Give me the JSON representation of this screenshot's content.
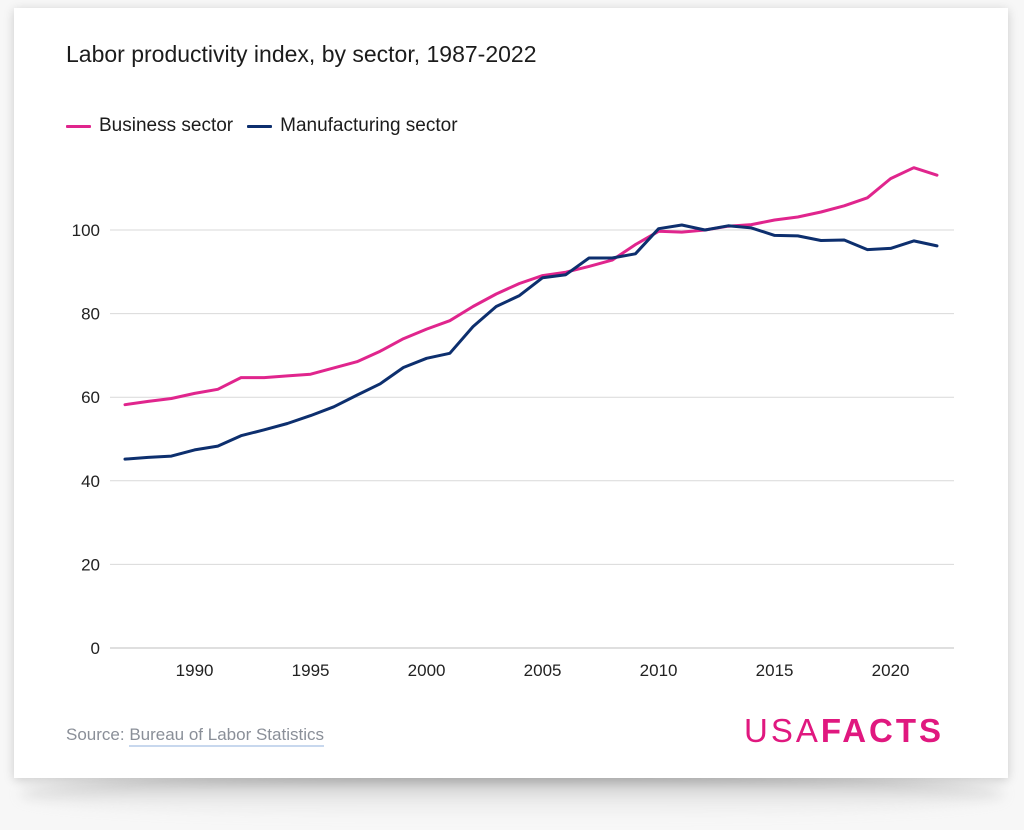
{
  "chart_data": {
    "type": "line",
    "title": "Labor productivity index, by sector, 1987-2022",
    "xlabel": "",
    "ylabel": "",
    "x": [
      1987,
      1988,
      1989,
      1990,
      1991,
      1992,
      1993,
      1994,
      1995,
      1996,
      1997,
      1998,
      1999,
      2000,
      2001,
      2002,
      2003,
      2004,
      2005,
      2006,
      2007,
      2008,
      2009,
      2010,
      2011,
      2012,
      2013,
      2014,
      2015,
      2016,
      2017,
      2018,
      2019,
      2020,
      2021,
      2022
    ],
    "xlim": [
      1987,
      2022
    ],
    "ylim": [
      0,
      115
    ],
    "yticks": [
      0,
      20,
      40,
      60,
      80,
      100
    ],
    "xticks": [
      1990,
      1995,
      2000,
      2005,
      2010,
      2015,
      2020
    ],
    "grid": true,
    "legend_position": "top-left",
    "series": [
      {
        "name": "Business sector",
        "color": "#e0258d",
        "values": [
          58.2,
          59.0,
          59.7,
          60.9,
          61.9,
          64.7,
          64.7,
          65.1,
          65.5,
          67.0,
          68.5,
          71.0,
          74.0,
          76.3,
          78.3,
          81.7,
          84.7,
          87.2,
          89.1,
          89.9,
          91.3,
          92.8,
          96.5,
          99.7,
          99.5,
          100.0,
          100.9,
          101.3,
          102.4,
          103.1,
          104.3,
          105.8,
          107.7,
          112.3,
          114.9,
          113.1
        ]
      },
      {
        "name": "Manufacturing sector",
        "color": "#0d2f6e",
        "values": [
          45.2,
          45.6,
          45.9,
          47.4,
          48.3,
          50.8,
          52.2,
          53.7,
          55.6,
          57.7,
          60.5,
          63.2,
          67.1,
          69.3,
          70.5,
          76.9,
          81.7,
          84.3,
          88.6,
          89.3,
          93.3,
          93.3,
          94.3,
          100.3,
          101.2,
          100.0,
          101.0,
          100.5,
          98.7,
          98.6,
          97.5,
          97.6,
          95.3,
          95.6,
          97.4,
          96.2
        ]
      }
    ]
  },
  "source": {
    "prefix": "Source: ",
    "link_text": "Bureau of Labor Statistics"
  },
  "logo": {
    "part1": "USA",
    "part2": "FACTS"
  },
  "colors": {
    "brand": "#e0187f",
    "grid": "#d9d9d9"
  }
}
